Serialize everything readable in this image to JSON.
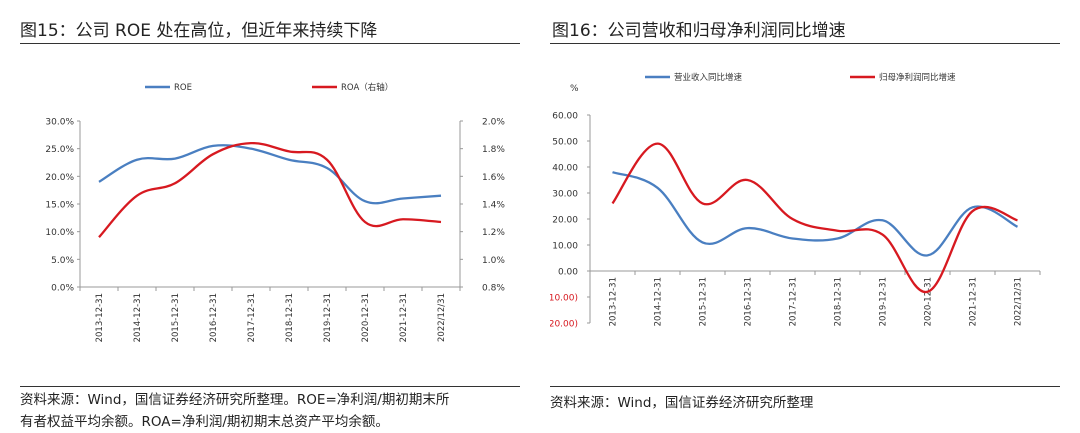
{
  "left": {
    "title": "图15：公司 ROE 处在高位，但近年来持续下降",
    "source_line1": "资料来源：Wind，国信证券经济研究所整理。ROE=净利润/期初期末所",
    "source_line2": "有者权益平均余额。ROA=净利润/期初期末总资产平均余额。"
  },
  "right": {
    "title": "图16：公司营收和归母净利润同比增速",
    "source_line1": "资料来源：Wind，国信证券经济研究所整理"
  },
  "colors": {
    "blue": "#4a7fc1",
    "red": "#d71920"
  },
  "chart_data": [
    {
      "type": "line",
      "title": "",
      "categories": [
        "2013-12-31",
        "2014-12-31",
        "2015-12-31",
        "2016-12-31",
        "2017-12-31",
        "2018-12-31",
        "2019-12-31",
        "2020-12-31",
        "2021-12-31",
        "2022/12/31"
      ],
      "left_axis": {
        "min": 0,
        "max": 30,
        "ticks": [
          "0.0%",
          "5.0%",
          "10.0%",
          "15.0%",
          "20.0%",
          "25.0%",
          "30.0%"
        ]
      },
      "right_axis": {
        "min": 0.8,
        "max": 2.0,
        "ticks": [
          "0.8%",
          "1.0%",
          "1.2%",
          "1.4%",
          "1.6%",
          "1.8%",
          "2.0%"
        ]
      },
      "series": [
        {
          "name": "ROE",
          "axis": "left",
          "color": "blue",
          "values": [
            19.0,
            23.0,
            23.2,
            25.5,
            25.0,
            23.0,
            21.5,
            15.5,
            16.0,
            16.5
          ]
        },
        {
          "name": "ROA（右轴）",
          "axis": "right",
          "color": "red",
          "values": [
            1.16,
            1.46,
            1.55,
            1.76,
            1.84,
            1.78,
            1.72,
            1.27,
            1.29,
            1.27
          ]
        }
      ]
    },
    {
      "type": "line",
      "title": "",
      "ylabel": "%",
      "categories": [
        "2013-12-31",
        "2014-12-31",
        "2015-12-31",
        "2016-12-31",
        "2017-12-31",
        "2018-12-31",
        "2019-12-31",
        "2020-12-31",
        "2021-12-31",
        "2022/12/31"
      ],
      "axis": {
        "min": -20,
        "max": 60,
        "ticks": [
          "(20.00)",
          "(10.00)",
          "0.00",
          "10.00",
          "20.00",
          "30.00",
          "40.00",
          "50.00",
          "60.00"
        ]
      },
      "series": [
        {
          "name": "营业收入同比增速",
          "color": "blue",
          "values": [
            38.0,
            32.0,
            11.0,
            16.5,
            12.5,
            12.5,
            19.5,
            6.0,
            24.5,
            17.0
          ]
        },
        {
          "name": "归母净利润同比增速",
          "color": "red",
          "values": [
            26.0,
            49.0,
            26.0,
            35.0,
            20.0,
            15.5,
            14.0,
            -8.0,
            23.0,
            19.5
          ]
        }
      ]
    }
  ]
}
